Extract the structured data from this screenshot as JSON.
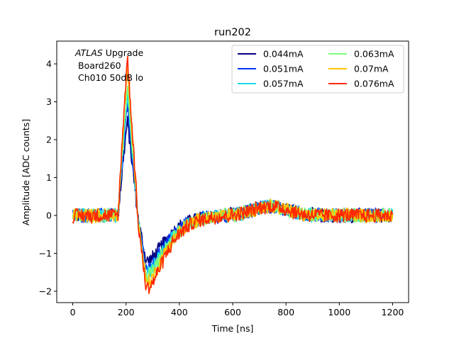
{
  "chart_data": {
    "type": "line",
    "title": "run202",
    "xlabel": "Time [ns]",
    "ylabel": "Amplitude [ADC counts]",
    "xlim": [
      -60,
      1260
    ],
    "ylim": [
      -2.3,
      4.6
    ],
    "xticks": [
      0,
      200,
      400,
      600,
      800,
      1000,
      1200
    ],
    "yticks": [
      -2,
      -1,
      0,
      1,
      2,
      3,
      4
    ],
    "xtick_labels": [
      "0",
      "200",
      "400",
      "600",
      "800",
      "1000",
      "1200"
    ],
    "ytick_labels": [
      "−2",
      "−1",
      "0",
      "1",
      "2",
      "3",
      "4"
    ],
    "grid": false,
    "legend_position": "top-right",
    "legend_columns": 2,
    "annotation": {
      "line1_italic": "ATLAS",
      "line1_rest": " Upgrade",
      "line2": "Board260",
      "line3": "Ch010 50dB lo"
    },
    "series": [
      {
        "name": "0.044mA",
        "color": "#00007f",
        "peak": 2.5,
        "undershoot": -1.2
      },
      {
        "name": "0.051mA",
        "color": "#0033ff",
        "peak": 2.9,
        "undershoot": -1.4
      },
      {
        "name": "0.057mA",
        "color": "#17d9e3",
        "peak": 3.2,
        "undershoot": -1.5
      },
      {
        "name": "0.063mA",
        "color": "#7dff7a",
        "peak": 3.5,
        "undershoot": -1.6
      },
      {
        "name": "0.07mA",
        "color": "#ffc400",
        "peak": 3.9,
        "undershoot": -1.75
      },
      {
        "name": "0.076mA",
        "color": "#ff2a00",
        "peak": 4.2,
        "undershoot": -1.9
      }
    ],
    "x_range": [
      0,
      1200
    ],
    "sample_step_ns": 2,
    "noise_amplitude": 0.15
  }
}
